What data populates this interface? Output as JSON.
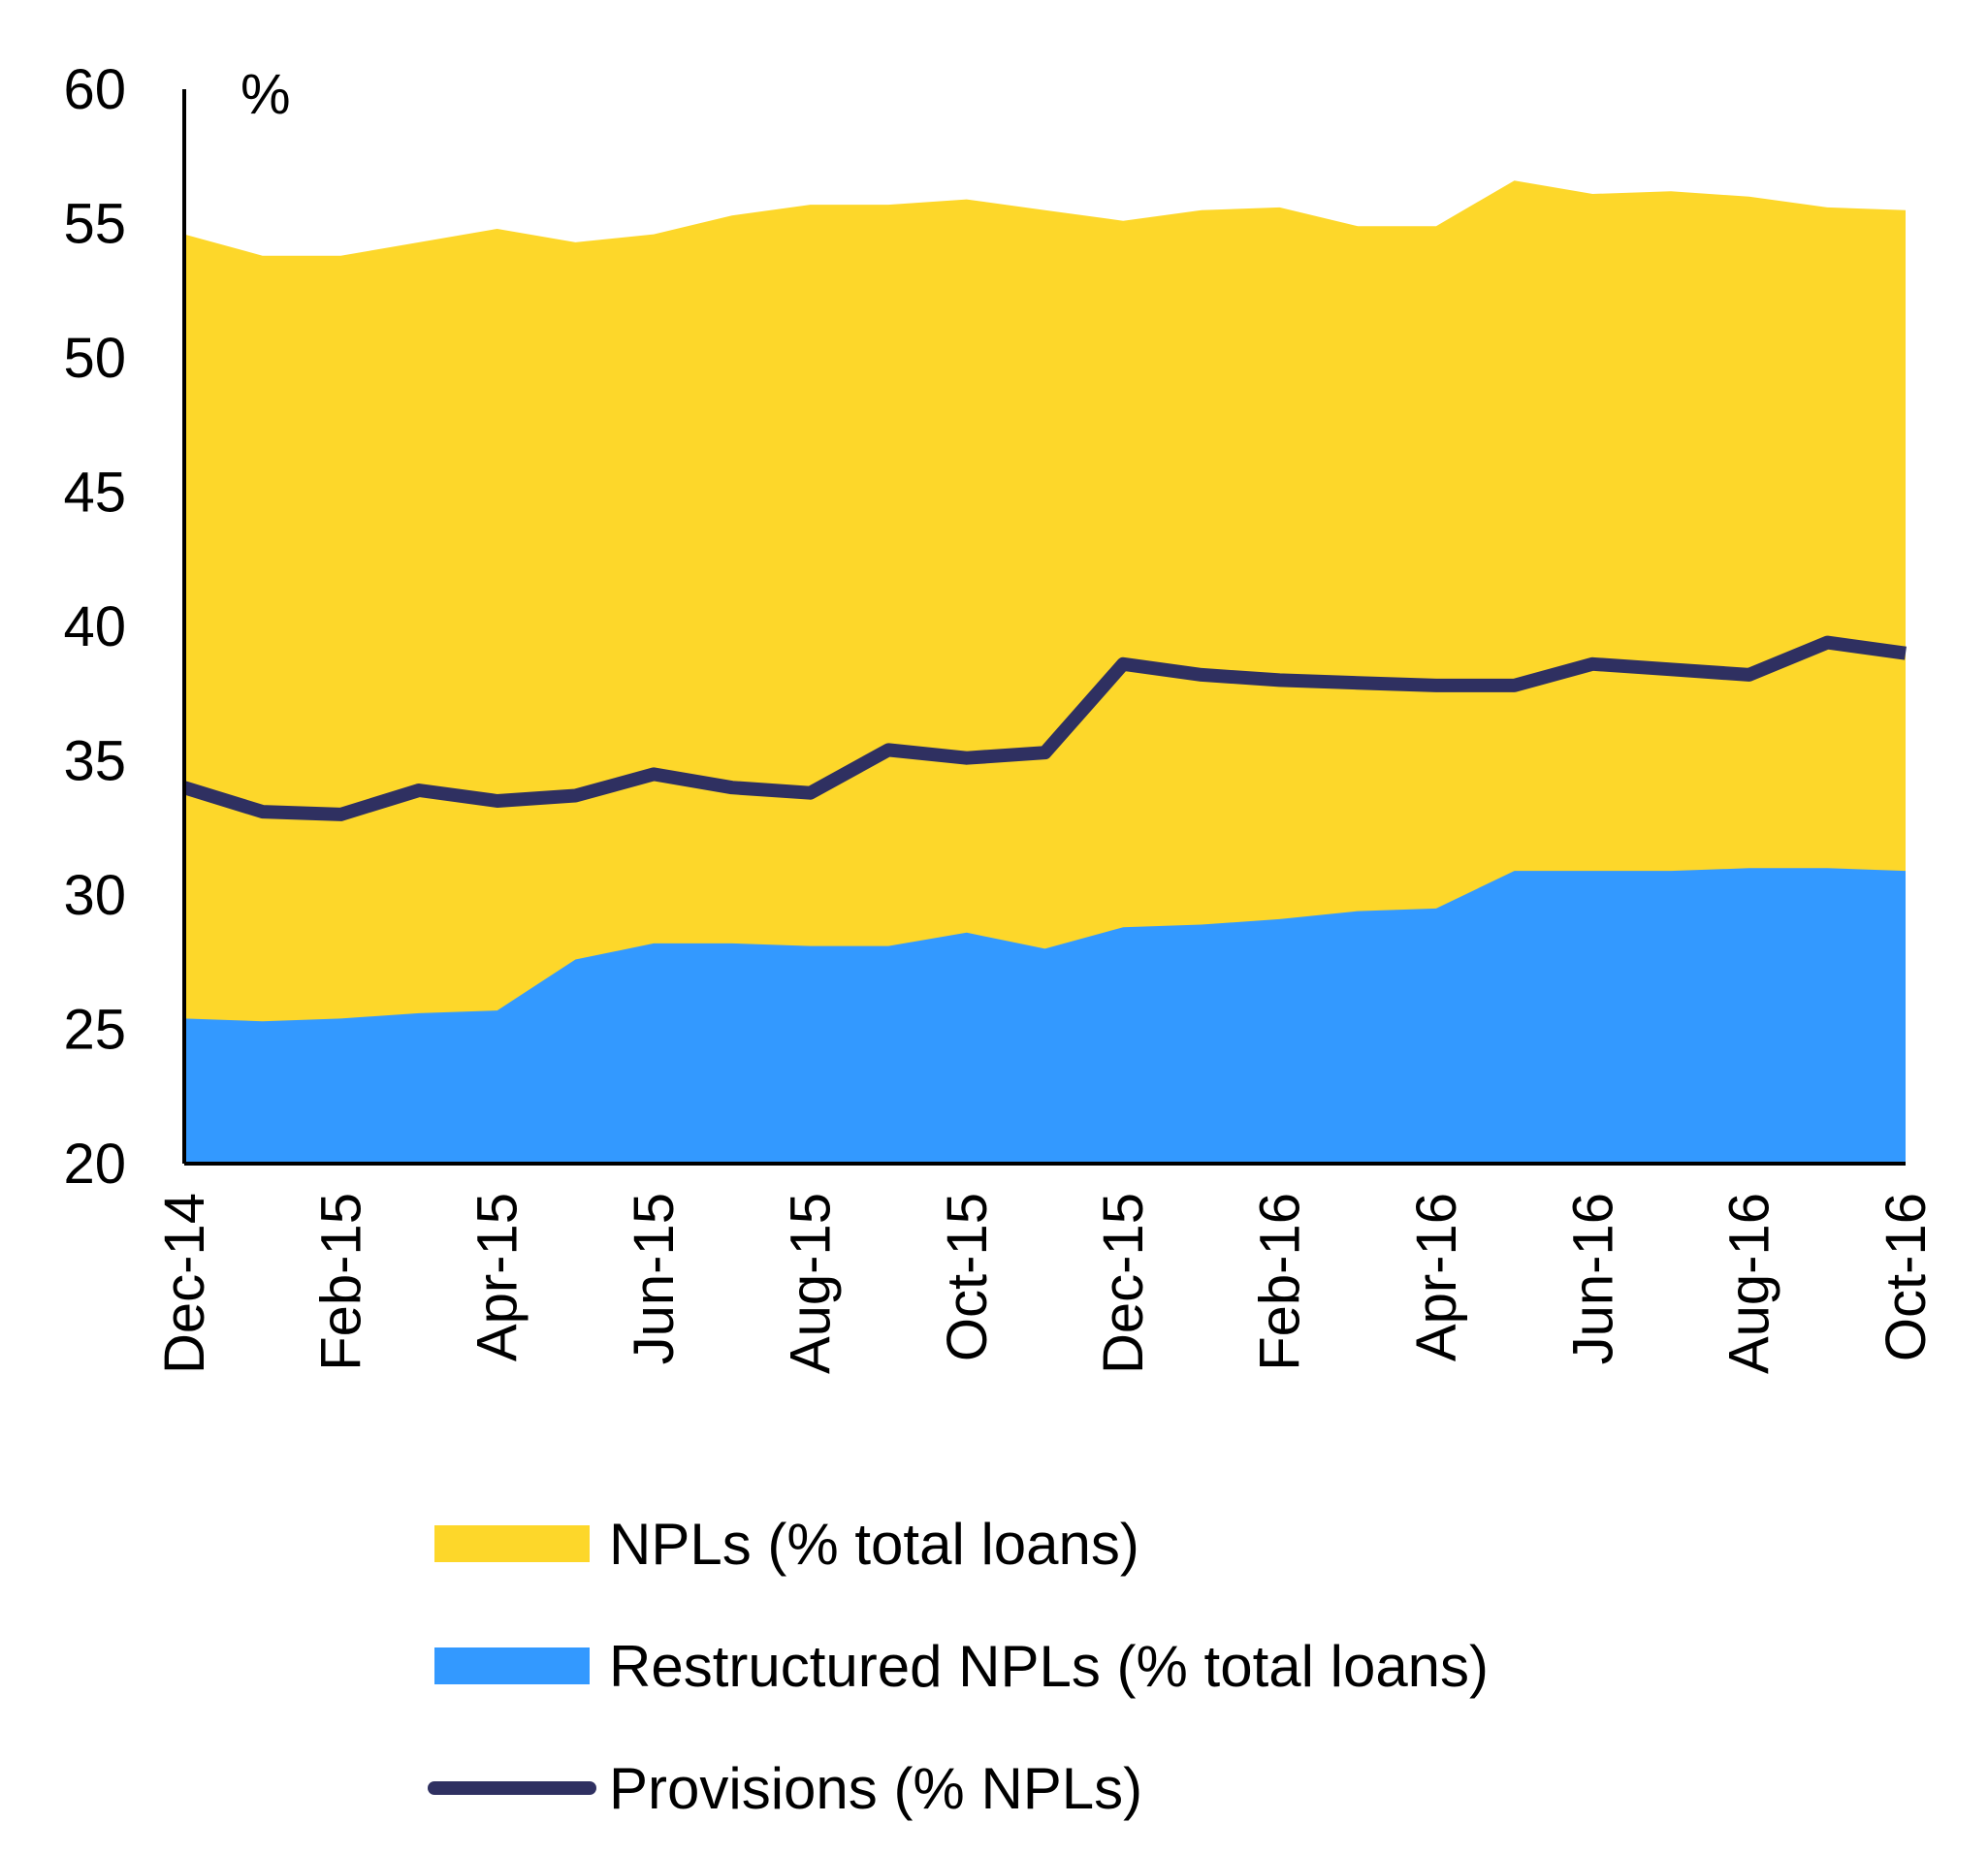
{
  "chart_data": {
    "type": "area",
    "x": [
      "Dec-14",
      "Jan-15",
      "Feb-15",
      "Mar-15",
      "Apr-15",
      "May-15",
      "Jun-15",
      "Jul-15",
      "Aug-15",
      "Sep-15",
      "Oct-15",
      "Nov-15",
      "Dec-15",
      "Jan-16",
      "Feb-16",
      "Mar-16",
      "Apr-16",
      "May-16",
      "Jun-16",
      "Jul-16",
      "Aug-16",
      "Sep-16",
      "Oct-16"
    ],
    "x_tick_labels": [
      "Dec-14",
      "Feb-15",
      "Apr-15",
      "Jun-15",
      "Aug-15",
      "Oct-15",
      "Dec-15",
      "Feb-16",
      "Apr-16",
      "Jun-16",
      "Aug-16",
      "Oct-16"
    ],
    "unit_label": "%",
    "ylim": [
      20,
      60
    ],
    "y_ticks": [
      20,
      25,
      30,
      35,
      40,
      45,
      50,
      55,
      60
    ],
    "series": [
      {
        "name": "NPLs (% total loans)",
        "kind": "area",
        "color": "#FDD72A",
        "values": [
          54.6,
          53.8,
          53.8,
          54.3,
          54.8,
          54.3,
          54.6,
          55.3,
          55.7,
          55.7,
          55.9,
          55.5,
          55.1,
          55.5,
          55.6,
          54.9,
          54.9,
          56.6,
          56.1,
          56.2,
          56.0,
          55.6,
          55.5
        ]
      },
      {
        "name": "Restructured NPLs (% total loans)",
        "kind": "area",
        "color": "#3399FF",
        "values": [
          25.4,
          25.3,
          25.4,
          25.6,
          25.7,
          27.6,
          28.2,
          28.2,
          28.1,
          28.1,
          28.6,
          28.0,
          28.8,
          28.9,
          29.1,
          29.4,
          29.5,
          30.9,
          30.9,
          30.9,
          31.0,
          31.0,
          30.9
        ]
      },
      {
        "name": "Provisions (% NPLs)",
        "kind": "line",
        "color": "#2F3061",
        "values": [
          34.0,
          33.1,
          33.0,
          33.9,
          33.5,
          33.7,
          34.5,
          34.0,
          33.8,
          35.4,
          35.1,
          35.3,
          38.6,
          38.2,
          38.0,
          37.9,
          37.8,
          37.8,
          38.6,
          38.4,
          38.2,
          39.4,
          39.0
        ]
      }
    ],
    "legend_position": "bottom"
  }
}
